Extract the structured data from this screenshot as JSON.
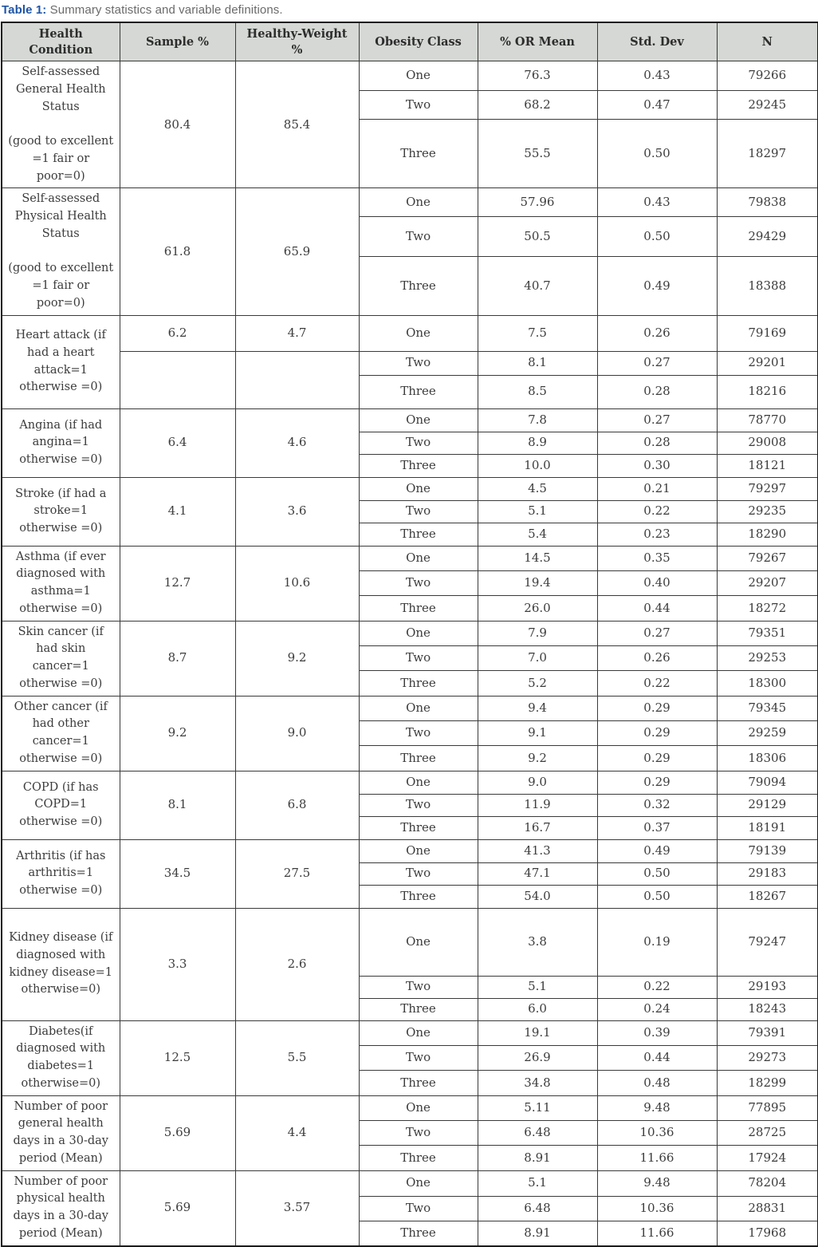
{
  "title": {
    "label": "Table 1:",
    "text": "Summary statistics and variable definitions."
  },
  "columns": [
    "Health Condition",
    "Sample %",
    "Healthy-Weight %",
    "Obesity Class",
    "% OR Mean",
    "Std. Dev",
    "N"
  ],
  "accent_colors": {
    "title_blue": "#1f55a6",
    "header_gray": "#d5d8d4"
  },
  "rows": [
    {
      "condition": "Self-assessed General Health Status\n\n(good to excellent =1 fair or poor=0)",
      "sample": "80.4",
      "healthy_weight": "85.4",
      "split_sample": false,
      "classes": [
        {
          "obesity_class": "One",
          "mean": "76.3",
          "std": "0.43",
          "n": "79266"
        },
        {
          "obesity_class": "Two",
          "mean": "68.2",
          "std": "0.47",
          "n": "29245"
        },
        {
          "obesity_class": "Three",
          "mean": "55.5",
          "std": "0.50",
          "n": "18297"
        }
      ]
    },
    {
      "condition": "Self-assessed Physical Health Status\n\n(good to excellent =1 fair or poor=0)",
      "sample": "61.8",
      "healthy_weight": "65.9",
      "split_sample": false,
      "classes": [
        {
          "obesity_class": "One",
          "mean": "57.96",
          "std": "0.43",
          "n": "79838"
        },
        {
          "obesity_class": "Two",
          "mean": "50.5",
          "std": "0.50",
          "n": "29429"
        },
        {
          "obesity_class": "Three",
          "mean": "40.7",
          "std": "0.49",
          "n": "18388"
        }
      ]
    },
    {
      "condition": "Heart attack (if had a heart attack=1 otherwise =0)",
      "sample": "6.2",
      "healthy_weight": "4.7",
      "split_sample": true,
      "classes": [
        {
          "obesity_class": "One",
          "mean": "7.5",
          "std": "0.26",
          "n": "79169"
        },
        {
          "obesity_class": "Two",
          "mean": "8.1",
          "std": "0.27",
          "n": "29201"
        },
        {
          "obesity_class": "Three",
          "mean": "8.5",
          "std": "0.28",
          "n": "18216"
        }
      ]
    },
    {
      "condition": "Angina (if had angina=1 otherwise =0)",
      "sample": "6.4",
      "healthy_weight": "4.6",
      "split_sample": false,
      "classes": [
        {
          "obesity_class": "One",
          "mean": "7.8",
          "std": "0.27",
          "n": "78770"
        },
        {
          "obesity_class": "Two",
          "mean": "8.9",
          "std": "0.28",
          "n": "29008"
        },
        {
          "obesity_class": "Three",
          "mean": "10.0",
          "std": "0.30",
          "n": "18121"
        }
      ]
    },
    {
      "condition": "Stroke (if had a stroke=1 otherwise =0)",
      "sample": "4.1",
      "healthy_weight": "3.6",
      "split_sample": false,
      "classes": [
        {
          "obesity_class": "One",
          "mean": "4.5",
          "std": "0.21",
          "n": "79297"
        },
        {
          "obesity_class": "Two",
          "mean": "5.1",
          "std": "0.22",
          "n": "29235"
        },
        {
          "obesity_class": "Three",
          "mean": "5.4",
          "std": "0.23",
          "n": "18290"
        }
      ]
    },
    {
      "condition": "Asthma (if ever diagnosed with asthma=1 otherwise =0)",
      "sample": "12.7",
      "healthy_weight": "10.6",
      "split_sample": false,
      "classes": [
        {
          "obesity_class": "One",
          "mean": "14.5",
          "std": "0.35",
          "n": "79267"
        },
        {
          "obesity_class": "Two",
          "mean": "19.4",
          "std": "0.40",
          "n": "29207"
        },
        {
          "obesity_class": "Three",
          "mean": "26.0",
          "std": "0.44",
          "n": "18272"
        }
      ]
    },
    {
      "condition": "Skin cancer (if had skin cancer=1 otherwise =0)",
      "sample": "8.7",
      "healthy_weight": "9.2",
      "split_sample": false,
      "classes": [
        {
          "obesity_class": "One",
          "mean": "7.9",
          "std": "0.27",
          "n": "79351"
        },
        {
          "obesity_class": "Two",
          "mean": "7.0",
          "std": "0.26",
          "n": "29253"
        },
        {
          "obesity_class": "Three",
          "mean": "5.2",
          "std": "0.22",
          "n": "18300"
        }
      ]
    },
    {
      "condition": "Other cancer (if had other cancer=1 otherwise =0)",
      "sample": "9.2",
      "healthy_weight": "9.0",
      "split_sample": false,
      "classes": [
        {
          "obesity_class": "One",
          "mean": "9.4",
          "std": "0.29",
          "n": "79345"
        },
        {
          "obesity_class": "Two",
          "mean": "9.1",
          "std": "0.29",
          "n": "29259"
        },
        {
          "obesity_class": "Three",
          "mean": "9.2",
          "std": "0.29",
          "n": "18306"
        }
      ]
    },
    {
      "condition": "COPD (if has COPD=1 otherwise =0)",
      "sample": "8.1",
      "healthy_weight": "6.8",
      "split_sample": false,
      "classes": [
        {
          "obesity_class": "One",
          "mean": "9.0",
          "std": "0.29",
          "n": "79094"
        },
        {
          "obesity_class": "Two",
          "mean": "11.9",
          "std": "0.32",
          "n": "29129"
        },
        {
          "obesity_class": "Three",
          "mean": "16.7",
          "std": "0.37",
          "n": "18191"
        }
      ]
    },
    {
      "condition": "Arthritis (if has arthritis=1 otherwise =0)",
      "sample": "34.5",
      "healthy_weight": "27.5",
      "split_sample": false,
      "classes": [
        {
          "obesity_class": "One",
          "mean": "41.3",
          "std": "0.49",
          "n": "79139"
        },
        {
          "obesity_class": "Two",
          "mean": "47.1",
          "std": "0.50",
          "n": "29183"
        },
        {
          "obesity_class": "Three",
          "mean": "54.0",
          "std": "0.50",
          "n": "18267"
        }
      ]
    },
    {
      "condition": "Kidney disease (if diagnosed with kidney disease=1 otherwise=0)",
      "sample": "3.3",
      "healthy_weight": "2.6",
      "split_sample": false,
      "classes": [
        {
          "obesity_class": "One",
          "mean": "3.8",
          "std": "0.19",
          "n": "79247"
        },
        {
          "obesity_class": "Two",
          "mean": "5.1",
          "std": "0.22",
          "n": "29193"
        },
        {
          "obesity_class": "Three",
          "mean": "6.0",
          "std": "0.24",
          "n": "18243"
        }
      ]
    },
    {
      "condition": "Diabetes(if diagnosed with diabetes=1 otherwise=0)",
      "sample": "12.5",
      "healthy_weight": "5.5",
      "split_sample": false,
      "classes": [
        {
          "obesity_class": "One",
          "mean": "19.1",
          "std": "0.39",
          "n": "79391"
        },
        {
          "obesity_class": "Two",
          "mean": "26.9",
          "std": "0.44",
          "n": "29273"
        },
        {
          "obesity_class": "Three",
          "mean": "34.8",
          "std": "0.48",
          "n": "18299"
        }
      ]
    },
    {
      "condition": "Number of poor general health days in a 30-day period (Mean)",
      "sample": "5.69",
      "healthy_weight": "4.4",
      "split_sample": false,
      "classes": [
        {
          "obesity_class": "One",
          "mean": "5.11",
          "std": "9.48",
          "n": "77895"
        },
        {
          "obesity_class": "Two",
          "mean": "6.48",
          "std": "10.36",
          "n": "28725"
        },
        {
          "obesity_class": "Three",
          "mean": "8.91",
          "std": "11.66",
          "n": "17924"
        }
      ]
    },
    {
      "condition": "Number of poor physical health days in a 30-day period (Mean)",
      "sample": "5.69",
      "healthy_weight": "3.57",
      "split_sample": false,
      "classes": [
        {
          "obesity_class": "One",
          "mean": "5.1",
          "std": "9.48",
          "n": "78204"
        },
        {
          "obesity_class": "Two",
          "mean": "6.48",
          "std": "10.36",
          "n": "28831"
        },
        {
          "obesity_class": "Three",
          "mean": "8.91",
          "std": "11.66",
          "n": "17968"
        }
      ]
    }
  ]
}
